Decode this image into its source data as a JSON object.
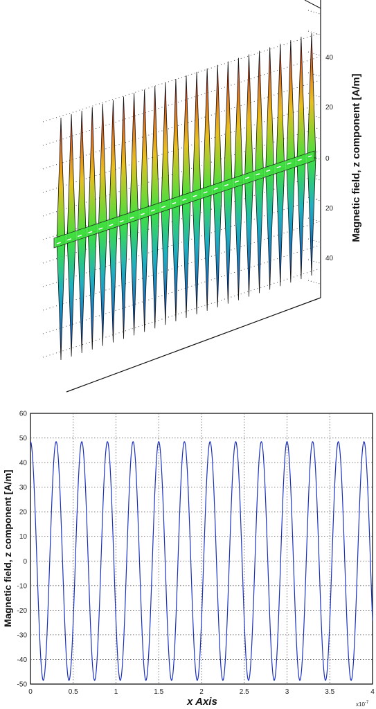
{
  "chart_data": [
    {
      "type": "surface",
      "zlabel": "Magnetic field, z component [A/m]",
      "z_ticks": [
        40,
        20,
        0,
        20,
        40
      ],
      "zlim": [
        -50,
        50
      ],
      "peaks": 25,
      "colors": {
        "high": "#d62020",
        "mid_high": "#e8c020",
        "zero": "#40e040",
        "mid_low": "#20b0c0",
        "low": "#1040c0",
        "edge": "#111111"
      }
    },
    {
      "type": "line",
      "title": "",
      "xlabel": "x Axis",
      "ylabel": "Magnetic field, z component [A/m]",
      "x_multiplier": "x10",
      "x_multiplier_exp": "-7",
      "xlim": [
        0,
        4
      ],
      "ylim": [
        -50,
        60
      ],
      "x_ticks": [
        "0",
        "0.5",
        "1",
        "1.5",
        "2",
        "2.5",
        "3",
        "3.5",
        "4"
      ],
      "y_ticks": [
        "60",
        "50",
        "40",
        "30",
        "20",
        "10",
        "0",
        "-10",
        "-20",
        "-30",
        "-40",
        "-50"
      ],
      "grid": true,
      "series": [
        {
          "amplitude": 48.5,
          "period": 0.3,
          "phase_shift": 0.0,
          "x_range": [
            0,
            4
          ],
          "color": "#1a2fbf"
        }
      ]
    }
  ]
}
